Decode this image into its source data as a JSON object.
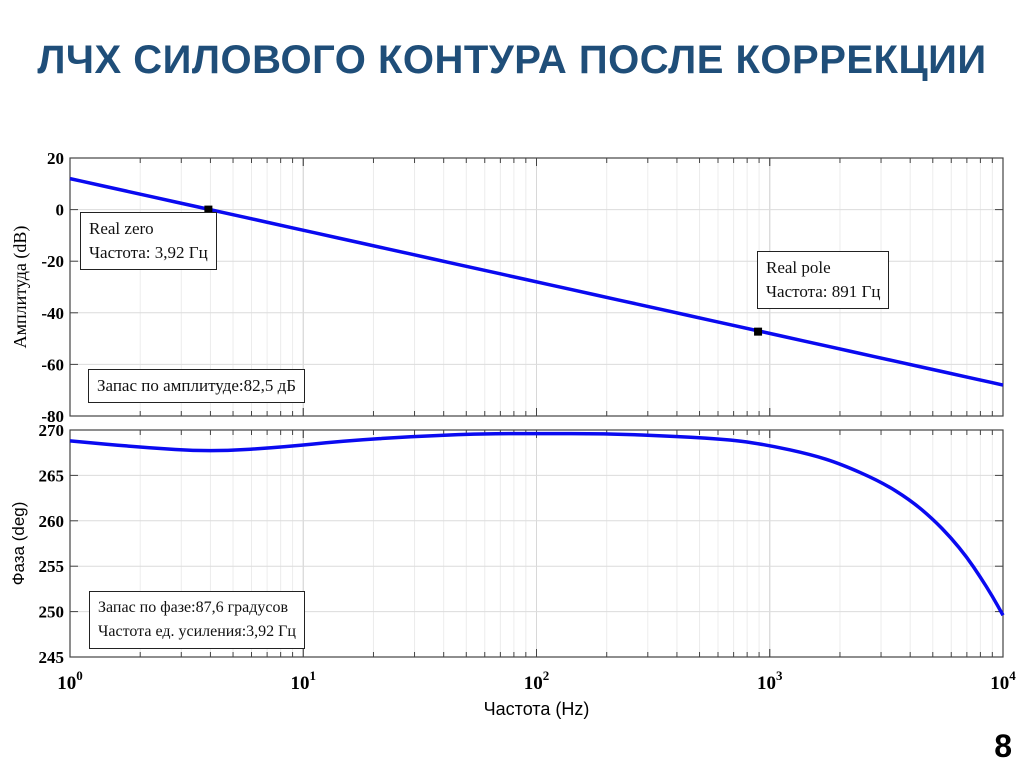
{
  "title": "ЛЧХ СИЛОВОГО КОНТУРА ПОСЛЕ КОРРЕКЦИИ",
  "page_number": "8",
  "colors": {
    "title": "#1f4e79",
    "series": "#0a0af0"
  },
  "chart_data": [
    {
      "type": "line",
      "xscale": "log",
      "xlim": [
        1,
        10000
      ],
      "ylim": [
        -80,
        20
      ],
      "ylabel": "Амплитуда (dB)",
      "yticks": [
        "20",
        "0",
        "-20",
        "-40",
        "-60",
        "-80"
      ],
      "grid": true,
      "series": [
        {
          "x": [
            1,
            10000
          ],
          "y": [
            12,
            -68
          ]
        }
      ],
      "markers": [
        {
          "x": 3.92,
          "y": 0
        },
        {
          "x": 891,
          "y": -47.3
        }
      ],
      "annotations": {
        "zero": [
          "Real zero",
          "Частота: 3,92 Гц"
        ],
        "pole": [
          "Real pole",
          "Частота: 891 Гц"
        ],
        "gain_margin": "Запас по амплитуде:82,5 дБ"
      }
    },
    {
      "type": "line",
      "xscale": "log",
      "xlim": [
        1,
        10000
      ],
      "ylim": [
        245,
        270
      ],
      "xlabel": "Частота (Hz)",
      "ylabel": "Фаза (deg)",
      "yticks": [
        "270",
        "265",
        "260",
        "255",
        "250",
        "245"
      ],
      "xticks": [
        {
          "base": "10",
          "exp": "0"
        },
        {
          "base": "10",
          "exp": "1"
        },
        {
          "base": "10",
          "exp": "2"
        },
        {
          "base": "10",
          "exp": "3"
        },
        {
          "base": "10",
          "exp": "4"
        }
      ],
      "grid": true,
      "series": [
        {
          "x": [
            1,
            2,
            4,
            8,
            15,
            30,
            60,
            100,
            200,
            400,
            700,
            1000,
            1500,
            2000,
            3000,
            4000,
            5000,
            6000,
            7000,
            8000,
            9000,
            10000
          ],
          "y": [
            268.8,
            268.1,
            267.6,
            268.1,
            268.8,
            269.3,
            269.6,
            269.6,
            269.6,
            269.3,
            268.9,
            268.3,
            267.3,
            266.3,
            264.3,
            262.3,
            260.2,
            258.1,
            256.0,
            253.8,
            251.7,
            249.6
          ]
        }
      ],
      "annotations": {
        "phase_margin": [
          "Запас по фазе:87,6 градусов",
          "Частота ед. усиления:3,92 Гц"
        ]
      }
    }
  ]
}
